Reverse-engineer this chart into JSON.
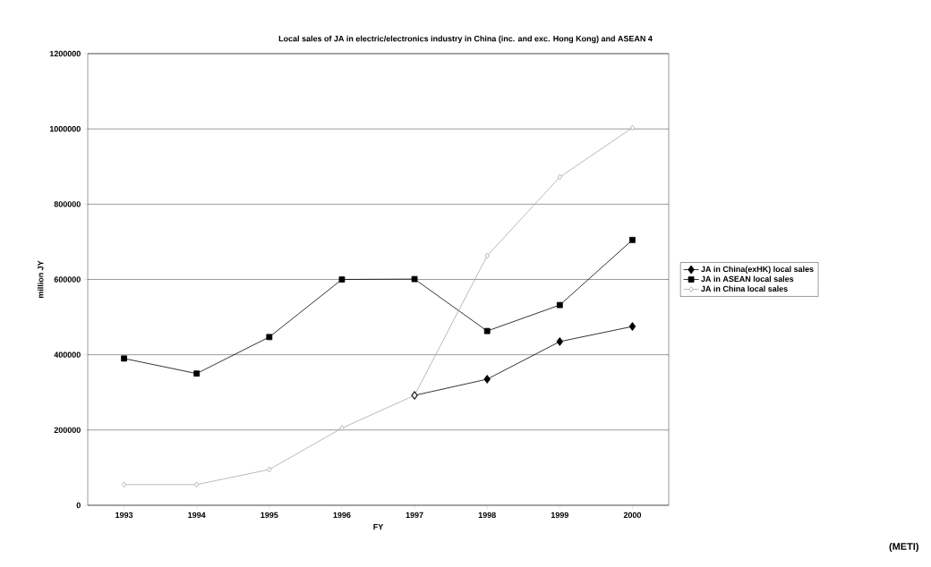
{
  "chart_data": {
    "type": "line",
    "title": "Local sales of JA in electric/electronics industry in China (inc. and exc. Hong Kong) and ASEAN 4",
    "xlabel": "FY",
    "ylabel": "million JY",
    "categories": [
      "1993",
      "1994",
      "1995",
      "1996",
      "1997",
      "1998",
      "1999",
      "2000"
    ],
    "series": [
      {
        "name": "JA in China(exHK) local sales",
        "color": "#000000",
        "marker": "diamond",
        "values": [
          null,
          null,
          null,
          null,
          292000,
          335000,
          435000,
          475000
        ]
      },
      {
        "name": "JA in ASEAN local sales",
        "color": "#000000",
        "marker": "square",
        "values": [
          390000,
          350000,
          447000,
          600000,
          601000,
          463000,
          532000,
          705000
        ]
      },
      {
        "name": "JA in China local sales",
        "color": "#a8a8a8",
        "marker": "diamond",
        "values": [
          55000,
          55000,
          95000,
          205000,
          292000,
          663000,
          872000,
          1003000
        ]
      }
    ],
    "ylim": [
      0,
      1200000
    ],
    "yticks": [
      0,
      200000,
      400000,
      600000,
      800000,
      1000000,
      1200000
    ],
    "grid": "y",
    "legend": "right",
    "line_style": "solid",
    "annotations": [
      "(METI)"
    ]
  }
}
